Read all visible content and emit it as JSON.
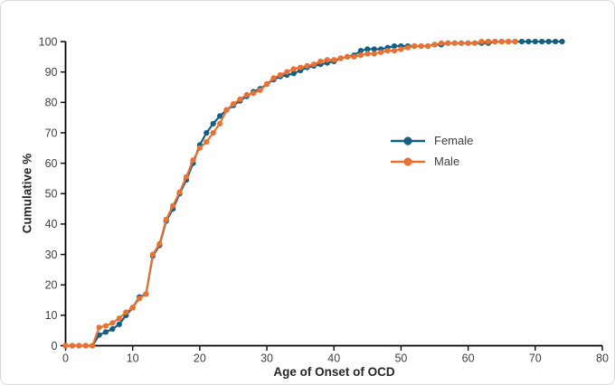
{
  "card": {
    "background": "#ffffff",
    "border_color": "#d9d9d9"
  },
  "chart_data": {
    "type": "line",
    "title": "",
    "xlabel": "Age of Onset of OCD",
    "ylabel": "Cumulative %",
    "xlim": [
      0,
      80
    ],
    "ylim": [
      0,
      100
    ],
    "xticks": [
      0,
      10,
      20,
      30,
      40,
      50,
      60,
      70,
      80
    ],
    "yticks": [
      0,
      10,
      20,
      30,
      40,
      50,
      60,
      70,
      80,
      90,
      100
    ],
    "grid": false,
    "legend_position": "center-right",
    "axis_color": "#000000",
    "tick_label_color": "#404040",
    "marker": "circle",
    "series": [
      {
        "name": "Female",
        "color": "#156082",
        "x_start": 0,
        "x_step": 1,
        "values": [
          0,
          0,
          0,
          0,
          0,
          3.5,
          4.5,
          5.5,
          7,
          10,
          12.5,
          16,
          17,
          29.5,
          33,
          41,
          45,
          50,
          54.5,
          60,
          66,
          70,
          73,
          75.5,
          77.5,
          79,
          80.5,
          82,
          83.5,
          84.5,
          86,
          87.5,
          88.5,
          89,
          89.5,
          90.5,
          91.5,
          92,
          92.5,
          93,
          93.5,
          94.5,
          95,
          95.5,
          97,
          97.5,
          97.5,
          97.5,
          98,
          98.5,
          98.5,
          98.5,
          98.5,
          98.5,
          98.5,
          99,
          99,
          99.5,
          99.5,
          99.5,
          99.5,
          99.5,
          99.5,
          99.5,
          100,
          100,
          100,
          100,
          100,
          100,
          100,
          100,
          100,
          100,
          100
        ]
      },
      {
        "name": "Male",
        "color": "#E97132",
        "x_start": 0,
        "x_step": 1,
        "values": [
          0,
          0,
          0,
          0,
          0,
          6,
          6.5,
          7.5,
          9,
          11,
          12.5,
          15.5,
          17,
          30,
          33.5,
          41.5,
          46,
          50.5,
          55.5,
          61,
          65,
          67,
          70,
          73,
          77.5,
          79.5,
          81,
          82.5,
          83,
          84,
          86,
          88,
          89,
          90,
          91,
          91.5,
          92,
          92.5,
          93.5,
          94,
          94,
          94.5,
          95,
          95,
          95.5,
          96,
          96,
          96.5,
          97,
          97,
          97.5,
          98,
          98.5,
          98.5,
          98.5,
          99,
          99.5,
          99.5,
          99.5,
          99.5,
          99.5,
          99.5,
          100,
          100,
          100,
          100,
          100,
          100
        ]
      }
    ]
  }
}
